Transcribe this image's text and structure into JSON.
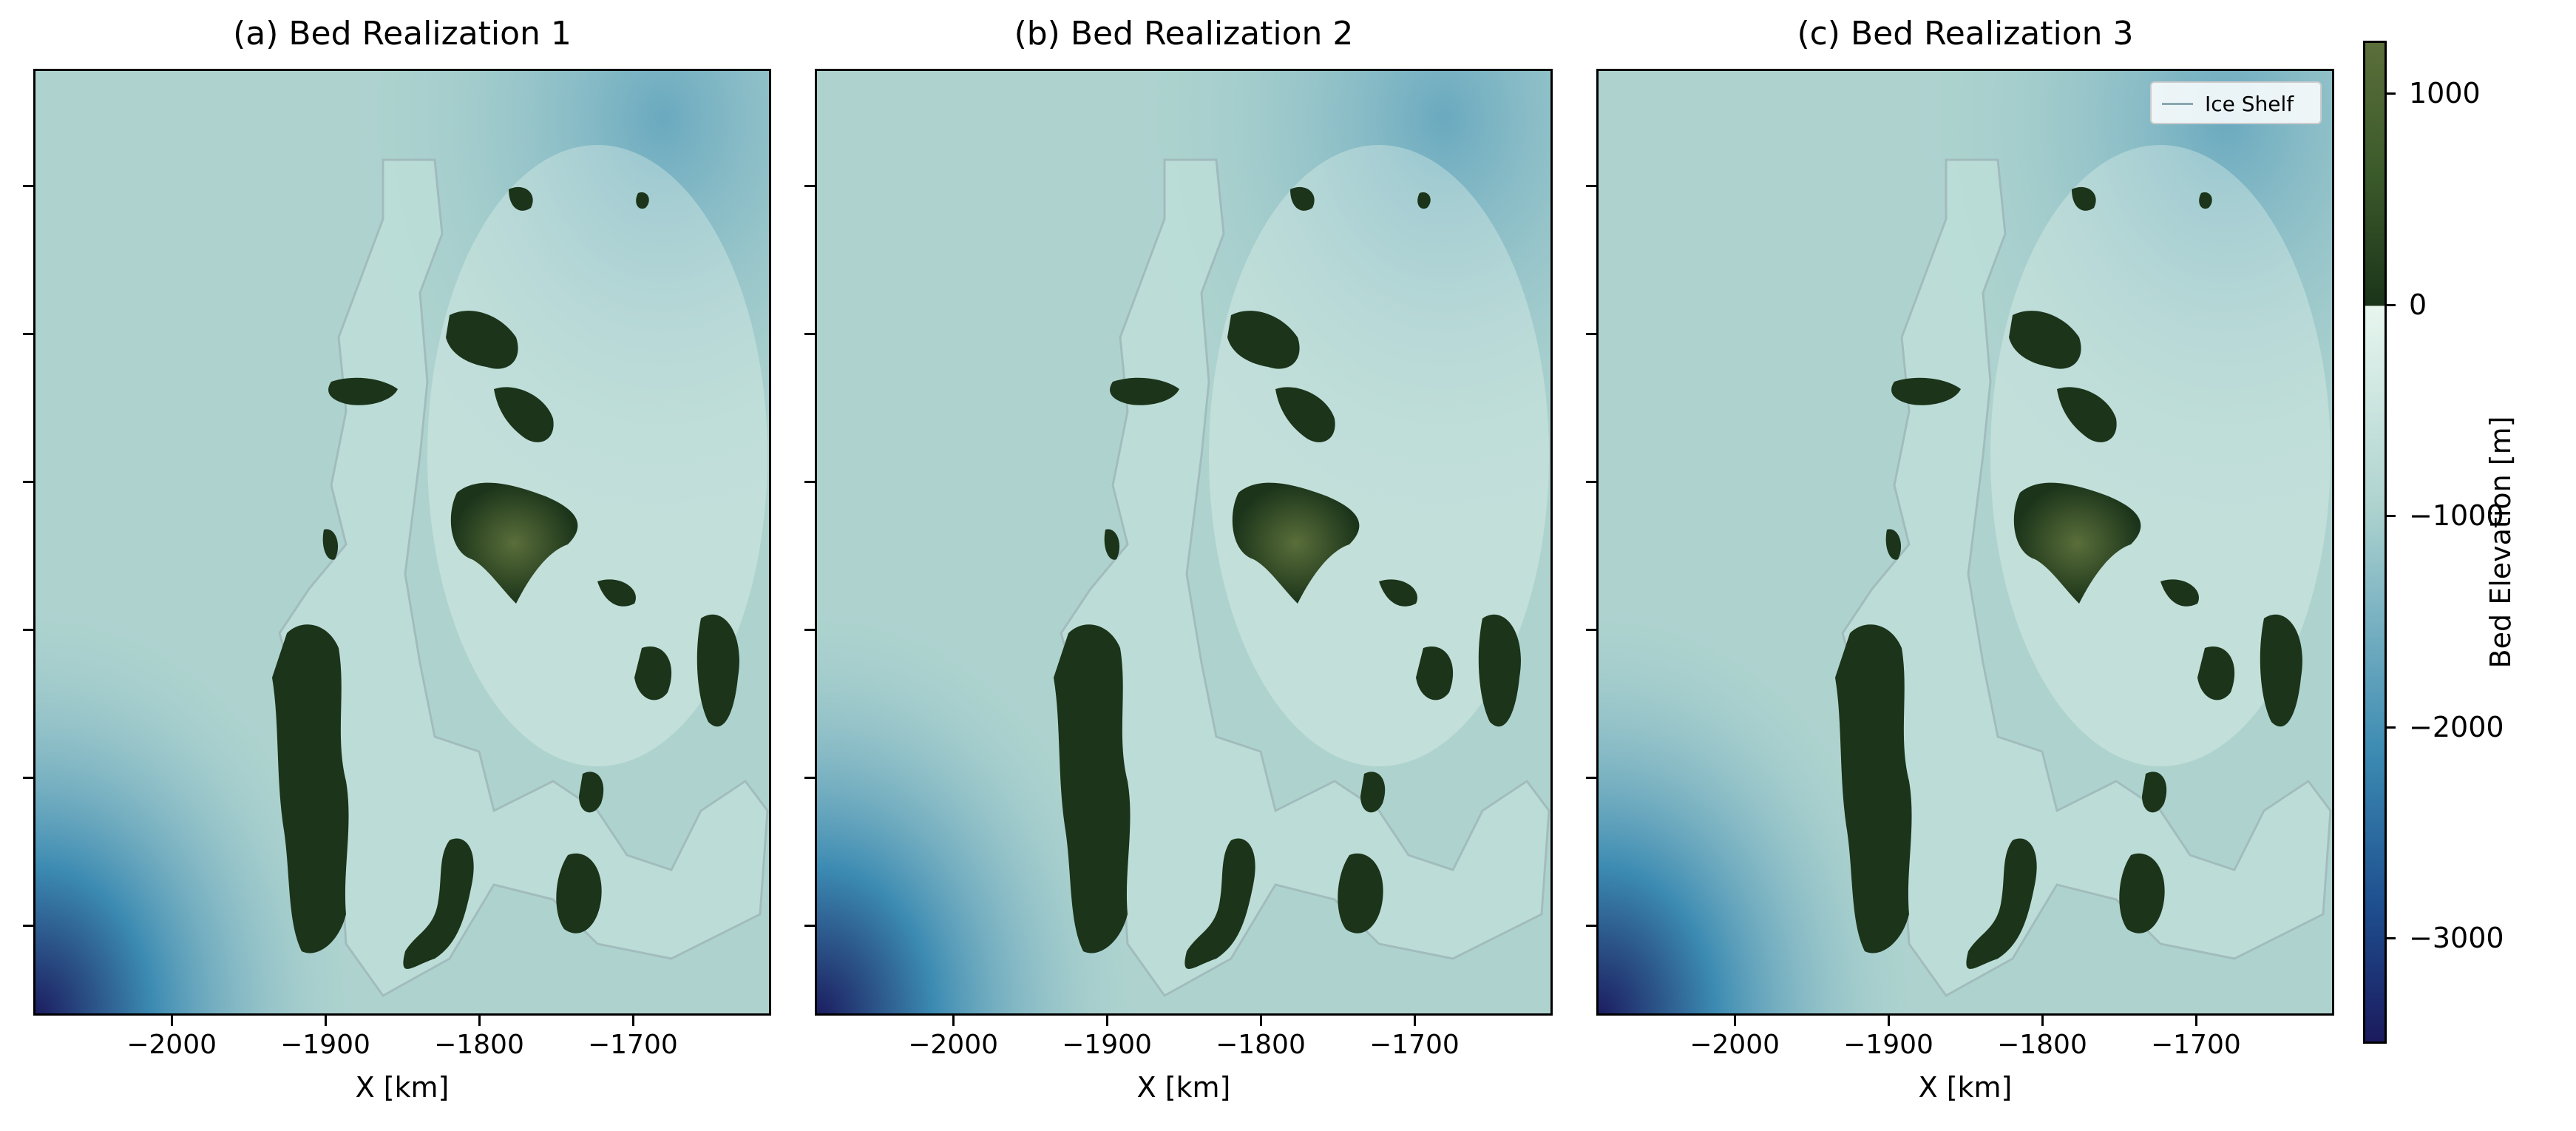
{
  "colors": {
    "deep_water": "#1b1b5e",
    "mid_blue": "#3b8ab2",
    "pale_cyan": "#aed3cf",
    "near_zero_below": "#e8f6ef",
    "land_dark": "#1b341a",
    "land_high": "#5a6e3a",
    "ice_shelf_outline": "#9aaab0"
  },
  "chart_data": [
    {
      "type": "heatmap",
      "title": "(a) Bed Realization 1",
      "xlabel": "X [km]",
      "xticks": [
        "−2000",
        "−1900",
        "−1800",
        "−1700"
      ],
      "yticks_labeled": false,
      "legend": null
    },
    {
      "type": "heatmap",
      "title": "(b) Bed Realization 2",
      "xlabel": "X [km]",
      "xticks": [
        "−2000",
        "−1900",
        "−1800",
        "−1700"
      ],
      "yticks_labeled": false,
      "legend": null
    },
    {
      "type": "heatmap",
      "title": "(c) Bed Realization 3",
      "xlabel": "X [km]",
      "xticks": [
        "−2000",
        "−1900",
        "−1800",
        "−1700"
      ],
      "yticks_labeled": false,
      "legend": {
        "entries": [
          "Ice Shelf"
        ],
        "placement": "top-right"
      }
    }
  ],
  "colorbar": {
    "label": "Bed Elevation [m]",
    "range": [
      -3500,
      1250
    ],
    "ticks": [
      1000,
      0,
      -1000,
      -2000,
      -3000
    ],
    "tick_labels": [
      "1000",
      "0",
      "−1000",
      "−2000",
      "−3000"
    ]
  }
}
